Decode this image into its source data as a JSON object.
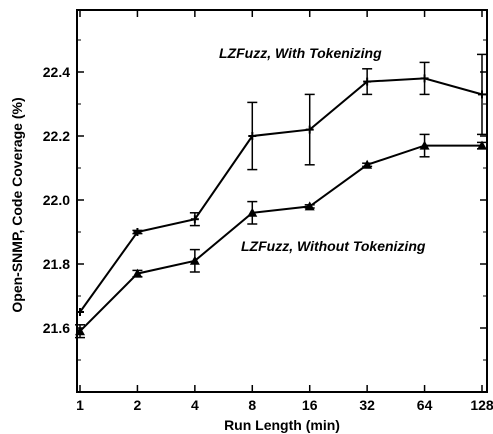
{
  "chart_data": {
    "type": "line",
    "xlabel": "Run Length (min)",
    "ylabel": "Open-SNMP, Code Coverage (%)",
    "x_scale": "log2",
    "categories": [
      "1",
      "2",
      "4",
      "8",
      "16",
      "32",
      "64",
      "128"
    ],
    "x": [
      1,
      2,
      4,
      8,
      16,
      32,
      64,
      128
    ],
    "y_ticks": [
      "21.6",
      "21.8",
      "22.0",
      "22.2",
      "22.4"
    ],
    "ylim": [
      21.4,
      22.6
    ],
    "grid": false,
    "series": [
      {
        "name": "LZFuzz, With Tokenizing",
        "marker": "plus",
        "values": [
          21.65,
          21.9,
          21.94,
          22.2,
          22.22,
          22.37,
          22.38,
          22.33
        ],
        "errors": [
          0.0,
          0.005,
          0.02,
          0.105,
          0.11,
          0.04,
          0.05,
          0.125
        ]
      },
      {
        "name": "LZFuzz, Without Tokenizing",
        "marker": "triangle",
        "values": [
          21.59,
          21.77,
          21.81,
          21.96,
          21.98,
          22.11,
          22.17,
          22.17
        ],
        "errors": [
          0.02,
          0.01,
          0.035,
          0.035,
          0.005,
          0.005,
          0.035,
          0.01
        ]
      }
    ],
    "annotations": [
      "LZFuzz, With Tokenizing",
      "LZFuzz, Without Tokenizing"
    ]
  }
}
